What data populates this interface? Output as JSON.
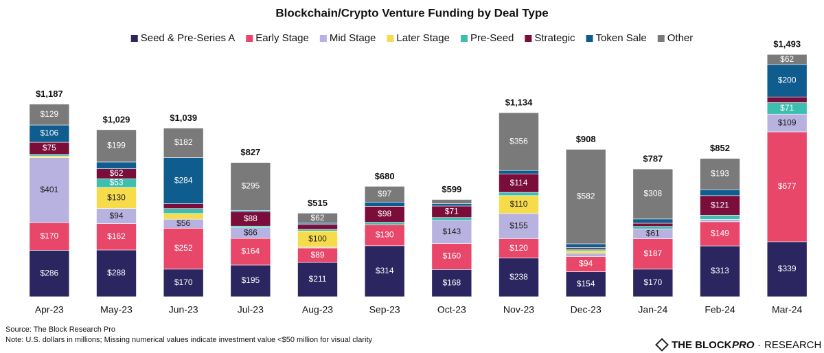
{
  "chart_data": {
    "type": "stacked_bar",
    "title": "Blockchain/Crypto Venture Funding by Deal Type",
    "categories": [
      "Apr-23",
      "May-23",
      "Jun-23",
      "Jul-23",
      "Aug-23",
      "Sep-23",
      "Oct-23",
      "Nov-23",
      "Dec-23",
      "Jan-24",
      "Feb-24",
      "Mar-24"
    ],
    "ylim": [
      0,
      1600
    ],
    "total_labels": [
      "$1,187",
      "$1,029",
      "$1,039",
      "$827",
      "$515",
      "$680",
      "$599",
      "$1,134",
      "$908",
      "$787",
      "$852",
      "$1,493"
    ],
    "series": [
      {
        "name": "Seed & Pre-Series A",
        "color": "#2b2560",
        "values": [
          286,
          288,
          170,
          195,
          211,
          314,
          168,
          238,
          154,
          170,
          313,
          339
        ],
        "value_labels": [
          "$286",
          "$288",
          "$170",
          "$195",
          "$211",
          "$314",
          "$168",
          "$238",
          "$154",
          "$170",
          "$313",
          "$339"
        ]
      },
      {
        "name": "Early Stage",
        "color": "#e8476a",
        "values": [
          170,
          162,
          252,
          164,
          89,
          130,
          160,
          120,
          94,
          187,
          149,
          677
        ],
        "value_labels": [
          "$170",
          "$162",
          "$252",
          "$164",
          "$89",
          "$130",
          "$160",
          "$120",
          "$94",
          "$187",
          "$149",
          "$677"
        ]
      },
      {
        "name": "Mid Stage",
        "color": "#b7b2e0",
        "values": [
          401,
          94,
          56,
          66,
          5,
          0,
          143,
          155,
          20,
          61,
          15,
          109
        ],
        "value_labels": [
          "$401",
          "$94",
          "$56",
          "$66",
          null,
          null,
          "$143",
          "$155",
          null,
          "$61",
          null,
          "$109"
        ]
      },
      {
        "name": "Later Stage",
        "color": "#f6dc4a",
        "values": [
          10,
          130,
          35,
          0,
          100,
          0,
          0,
          110,
          15,
          0,
          0,
          0
        ],
        "value_labels": [
          null,
          "$130",
          null,
          null,
          "$100",
          null,
          null,
          "$110",
          null,
          null,
          null,
          null
        ]
      },
      {
        "name": "Pre-Seed",
        "color": "#3dbfb0",
        "values": [
          10,
          53,
          30,
          10,
          10,
          15,
          17,
          20,
          10,
          15,
          25,
          71
        ],
        "value_labels": [
          null,
          "$53",
          null,
          null,
          null,
          null,
          null,
          null,
          null,
          null,
          null,
          "$71"
        ]
      },
      {
        "name": "Strategic",
        "color": "#7a0d3a",
        "values": [
          75,
          62,
          30,
          88,
          30,
          98,
          71,
          114,
          10,
          20,
          121,
          35
        ],
        "value_labels": [
          "$75",
          "$62",
          null,
          "$88",
          null,
          "$98",
          "$71",
          "$114",
          null,
          null,
          "$121",
          null
        ]
      },
      {
        "name": "Token Sale",
        "color": "#0f5c8e",
        "values": [
          106,
          41,
          284,
          9,
          8,
          26,
          15,
          21,
          23,
          26,
          36,
          200
        ],
        "value_labels": [
          "$106",
          null,
          "$284",
          null,
          null,
          null,
          null,
          null,
          null,
          null,
          null,
          "$200"
        ]
      },
      {
        "name": "Other",
        "color": "#7a7a7a",
        "values": [
          129,
          199,
          182,
          295,
          62,
          97,
          25,
          356,
          582,
          308,
          193,
          62
        ],
        "value_labels": [
          "$129",
          "$199",
          "$182",
          "$295",
          "$62",
          "$97",
          null,
          "$356",
          "$582",
          "$308",
          "$193",
          "$62"
        ]
      }
    ],
    "source": "Source: The Block Research Pro",
    "note": "Note: U.S. dollars in millions; Missing numerical values indicate investment value <$50 million for visual clarity",
    "brand": "THE BLOCK",
    "brand_pro": "PRO",
    "brand_research": "RESEARCH"
  }
}
